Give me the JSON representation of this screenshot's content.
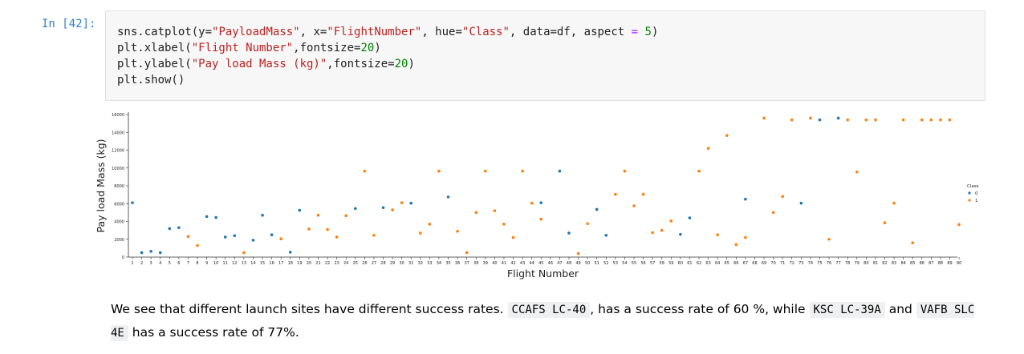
{
  "cell": {
    "prompt": "In [42]:",
    "code": {
      "line1": {
        "a": "sns.catplot(y=",
        "b": "\"PayloadMass\"",
        "c": ", x=",
        "d": "\"FlightNumber\"",
        "e": ", hue=",
        "f": "\"Class\"",
        "g": ", data=df, aspect ",
        "h": "=",
        "i": " ",
        "j": "5",
        "k": ")"
      },
      "line2": {
        "a": "plt.xlabel(",
        "b": "\"Flight Number\"",
        "c": ",fontsize=",
        "d": "20",
        "e": ")"
      },
      "line3": {
        "a": "plt.ylabel(",
        "b": "\"Pay load Mass (kg)\"",
        "c": ",fontsize=",
        "d": "20",
        "e": ")"
      },
      "line4": {
        "a": "plt.show()"
      }
    }
  },
  "colors": {
    "class0": "#1f77b4",
    "class1": "#ff7f0e"
  },
  "chart_data": {
    "type": "scatter",
    "xlabel": "Flight Number",
    "ylabel": "Pay load Mass (kg)",
    "ylim": [
      0,
      16000
    ],
    "yticks": [
      0,
      2000,
      4000,
      6000,
      8000,
      10000,
      12000,
      14000,
      16000
    ],
    "xticks": [
      1,
      2,
      3,
      4,
      5,
      6,
      7,
      8,
      9,
      10,
      11,
      12,
      13,
      14,
      15,
      16,
      17,
      18,
      19,
      20,
      21,
      22,
      23,
      24,
      25,
      26,
      27,
      28,
      29,
      30,
      31,
      32,
      33,
      34,
      35,
      36,
      37,
      38,
      39,
      40,
      41,
      42,
      43,
      44,
      45,
      46,
      47,
      48,
      49,
      50,
      51,
      52,
      53,
      54,
      55,
      56,
      57,
      58,
      59,
      60,
      61,
      62,
      63,
      64,
      65,
      66,
      67,
      68,
      69,
      70,
      71,
      72,
      73,
      74,
      75,
      76,
      77,
      78,
      79,
      80,
      81,
      82,
      83,
      84,
      85,
      86,
      87,
      88,
      89,
      90
    ],
    "grid": false,
    "legend": {
      "title": "Class",
      "placement": "right",
      "entries": [
        "0",
        "1"
      ]
    },
    "series": [
      {
        "name": "0",
        "points": [
          [
            1,
            6100
          ],
          [
            2,
            500
          ],
          [
            3,
            650
          ],
          [
            4,
            500
          ],
          [
            5,
            3200
          ],
          [
            6,
            3300
          ],
          [
            9,
            4550
          ],
          [
            10,
            4450
          ],
          [
            11,
            2250
          ],
          [
            12,
            2400
          ],
          [
            14,
            1900
          ],
          [
            15,
            4700
          ],
          [
            16,
            2500
          ],
          [
            18,
            550
          ],
          [
            19,
            5250
          ],
          [
            25,
            5450
          ],
          [
            28,
            5550
          ],
          [
            31,
            6050
          ],
          [
            35,
            6750
          ],
          [
            45,
            6100
          ],
          [
            47,
            9650
          ],
          [
            48,
            2700
          ],
          [
            51,
            5350
          ],
          [
            52,
            2450
          ],
          [
            60,
            2550
          ],
          [
            61,
            4400
          ],
          [
            67,
            6500
          ],
          [
            73,
            6050
          ],
          [
            75,
            15400
          ],
          [
            77,
            15600
          ]
        ]
      },
      {
        "name": "1",
        "points": [
          [
            7,
            2300
          ],
          [
            8,
            1300
          ],
          [
            13,
            500
          ],
          [
            17,
            2050
          ],
          [
            20,
            3150
          ],
          [
            21,
            4700
          ],
          [
            22,
            3100
          ],
          [
            23,
            2250
          ],
          [
            24,
            4650
          ],
          [
            26,
            9650
          ],
          [
            27,
            2450
          ],
          [
            29,
            5300
          ],
          [
            30,
            6100
          ],
          [
            32,
            2700
          ],
          [
            33,
            3700
          ],
          [
            34,
            9650
          ],
          [
            36,
            2900
          ],
          [
            37,
            500
          ],
          [
            38,
            5000
          ],
          [
            39,
            9650
          ],
          [
            40,
            5200
          ],
          [
            41,
            3700
          ],
          [
            42,
            2200
          ],
          [
            43,
            9650
          ],
          [
            44,
            6050
          ],
          [
            45,
            4250
          ],
          [
            49,
            400
          ],
          [
            50,
            3750
          ],
          [
            53,
            7050
          ],
          [
            54,
            9650
          ],
          [
            55,
            5750
          ],
          [
            56,
            7050
          ],
          [
            57,
            2750
          ],
          [
            58,
            3000
          ],
          [
            59,
            4050
          ],
          [
            62,
            9650
          ],
          [
            63,
            12200
          ],
          [
            64,
            2500
          ],
          [
            65,
            13650
          ],
          [
            66,
            1400
          ],
          [
            67,
            2200
          ],
          [
            69,
            15600
          ],
          [
            70,
            5000
          ],
          [
            71,
            6800
          ],
          [
            72,
            15400
          ],
          [
            74,
            15600
          ],
          [
            76,
            2000
          ],
          [
            78,
            15400
          ],
          [
            79,
            9550
          ],
          [
            80,
            15400
          ],
          [
            81,
            15400
          ],
          [
            82,
            3850
          ],
          [
            83,
            6050
          ],
          [
            84,
            15400
          ],
          [
            85,
            1600
          ],
          [
            86,
            15400
          ],
          [
            87,
            15400
          ],
          [
            88,
            15400
          ],
          [
            89,
            15400
          ],
          [
            90,
            3650
          ]
        ]
      }
    ]
  },
  "markdown": {
    "t1": "We see that different launch sites have different success rates. ",
    "c1": "CCAFS LC-40",
    "t2": ", has a success rate of 60 %, while ",
    "c2": "KSC LC-39A",
    "t3": " and ",
    "c3": "VAFB SLC 4E",
    "t4": " has a success rate of 77%."
  }
}
